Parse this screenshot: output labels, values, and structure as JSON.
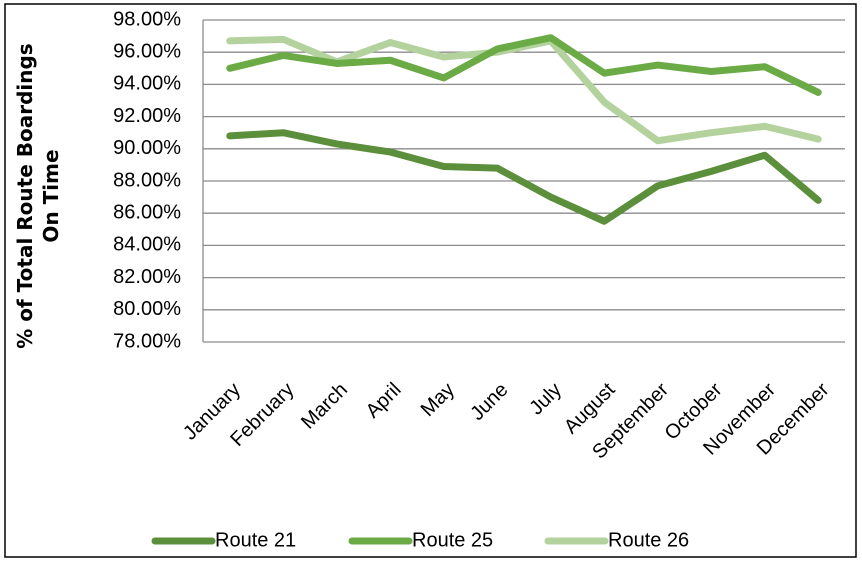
{
  "chart_data": {
    "type": "line",
    "y_label": "% of Total Route Boardings On Time",
    "categories": [
      "January",
      "February",
      "March",
      "April",
      "May",
      "June",
      "July",
      "August",
      "September",
      "October",
      "November",
      "December"
    ],
    "series": [
      {
        "name": "Route 21",
        "color": "#5b8f3b",
        "values": [
          90.8,
          91.0,
          90.3,
          89.8,
          88.9,
          88.8,
          87.0,
          85.5,
          87.7,
          88.6,
          89.6,
          86.8
        ]
      },
      {
        "name": "Route 25",
        "color": "#6aab45",
        "values": [
          95.0,
          95.8,
          95.3,
          95.5,
          94.4,
          96.2,
          96.9,
          94.7,
          95.2,
          94.8,
          95.1,
          93.5
        ]
      },
      {
        "name": "Route 26",
        "color": "#b4d29e",
        "values": [
          96.7,
          96.8,
          95.4,
          96.6,
          95.7,
          96.0,
          96.7,
          92.9,
          90.5,
          91.0,
          91.4,
          90.6
        ]
      }
    ],
    "ylim": [
      78,
      98
    ],
    "yticks": [
      {
        "value": 78,
        "label": "78.00%"
      },
      {
        "value": 80,
        "label": "80.00%"
      },
      {
        "value": 82,
        "label": "82.00%"
      },
      {
        "value": 84,
        "label": "84.00%"
      },
      {
        "value": 86,
        "label": "86.00%"
      },
      {
        "value": 88,
        "label": "88.00%"
      },
      {
        "value": 90,
        "label": "90.00%"
      },
      {
        "value": 92,
        "label": "92.00%"
      },
      {
        "value": 94,
        "label": "94.00%"
      },
      {
        "value": 96,
        "label": "96.00%"
      },
      {
        "value": 98,
        "label": "98.00%"
      }
    ],
    "grid": true,
    "legend": "bottom"
  }
}
